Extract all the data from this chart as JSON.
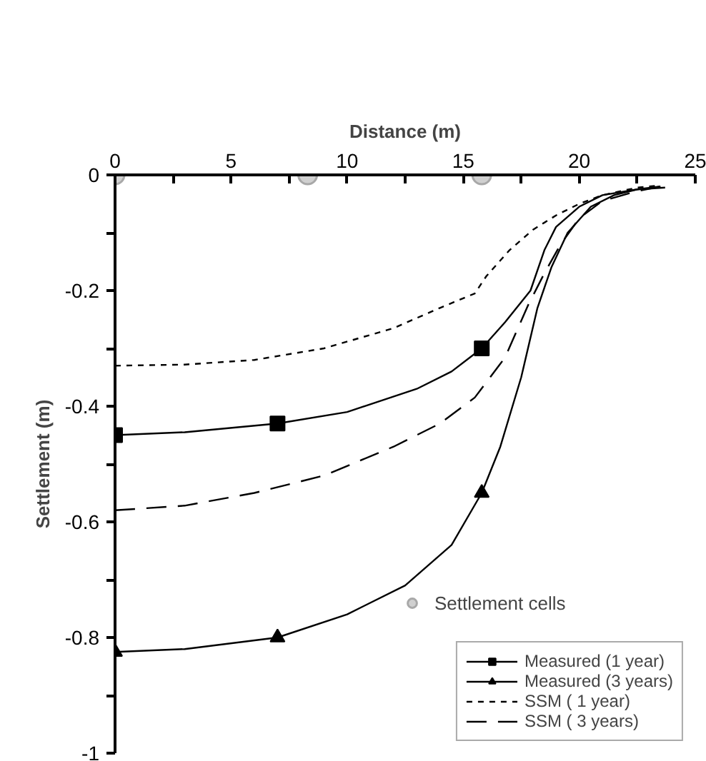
{
  "chart_data": {
    "type": "line",
    "xlabel": "Distance (m)",
    "ylabel": "Settlement (m)",
    "xlim": [
      0,
      25
    ],
    "ylim": [
      -1,
      0
    ],
    "xticks": [
      0,
      {
        "value": 2.5,
        "label": null
      },
      5,
      {
        "value": 7.5,
        "label": null
      },
      10,
      {
        "value": 12.5,
        "label": null
      },
      15,
      {
        "value": 17.5,
        "label": null
      },
      20,
      {
        "value": 22.5,
        "label": null
      },
      25
    ],
    "yticks": [
      0,
      {
        "value": -0.1,
        "label": null
      },
      -0.2,
      {
        "value": -0.3,
        "label": null
      },
      -0.4,
      {
        "value": -0.5,
        "label": null
      },
      -0.6,
      {
        "value": -0.7,
        "label": null
      },
      -0.8,
      {
        "value": -0.9,
        "label": null
      },
      -1
    ],
    "grid": false,
    "legend": "bottom right",
    "series": [
      {
        "name": "Settlement cells",
        "type": "scatter",
        "marker": "circle",
        "color": "#d0d0d0",
        "x": [
          0,
          8.3,
          15.8
        ],
        "values": [
          0,
          0,
          0
        ]
      },
      {
        "name": "Measured (1 year)",
        "type": "scatter",
        "marker": "square",
        "color": "#000000",
        "x": [
          0,
          7,
          15.8
        ],
        "values": [
          -0.45,
          -0.43,
          -0.3
        ]
      },
      {
        "type": "line",
        "line_style": "solid",
        "color": "#000000",
        "x": [
          0,
          3,
          7,
          10,
          13,
          14.5,
          15.8,
          16.8,
          17.9,
          18.5,
          19,
          20,
          21,
          22.5,
          23.5
        ],
        "values": [
          -0.45,
          -0.445,
          -0.43,
          -0.41,
          -0.37,
          -0.34,
          -0.3,
          -0.255,
          -0.2,
          -0.13,
          -0.09,
          -0.055,
          -0.035,
          -0.025,
          -0.02
        ]
      },
      {
        "name": "Measured (3 years)",
        "type": "scatter",
        "marker": "triangle",
        "color": "#000000",
        "x": [
          0,
          7,
          15.8
        ],
        "values": [
          -0.825,
          -0.8,
          -0.55
        ]
      },
      {
        "type": "line",
        "line_style": "solid",
        "color": "#000000",
        "x": [
          0,
          3,
          7,
          10,
          12.5,
          14.5,
          15.8,
          16.6,
          17.5,
          18.2,
          18.8,
          19.5,
          20.5,
          21.5,
          22.5,
          23.7
        ],
        "values": [
          -0.825,
          -0.82,
          -0.8,
          -0.76,
          -0.71,
          -0.64,
          -0.55,
          -0.47,
          -0.35,
          -0.23,
          -0.16,
          -0.1,
          -0.055,
          -0.035,
          -0.025,
          -0.022
        ]
      },
      {
        "name": "SSM ( 1 year)",
        "line_style": "dashed",
        "color": "#000000",
        "x": [
          0,
          3,
          6,
          9,
          12,
          14,
          15.5,
          16,
          17,
          18,
          19,
          20,
          21,
          22.5,
          23.5
        ],
        "values": [
          -0.33,
          -0.328,
          -0.32,
          -0.3,
          -0.265,
          -0.23,
          -0.205,
          -0.175,
          -0.13,
          -0.095,
          -0.07,
          -0.05,
          -0.035,
          -0.022,
          -0.018
        ]
      },
      {
        "name": "SSM ( 3 years)",
        "line_style": "longdash",
        "color": "#000000",
        "x": [
          0,
          3,
          6,
          9,
          12,
          14,
          15.5,
          16.8,
          17.8,
          18.5,
          19.2,
          20,
          21,
          22.5,
          23.5
        ],
        "values": [
          -0.58,
          -0.572,
          -0.55,
          -0.52,
          -0.47,
          -0.43,
          -0.385,
          -0.316,
          -0.225,
          -0.17,
          -0.12,
          -0.075,
          -0.045,
          -0.028,
          -0.02
        ]
      }
    ]
  }
}
